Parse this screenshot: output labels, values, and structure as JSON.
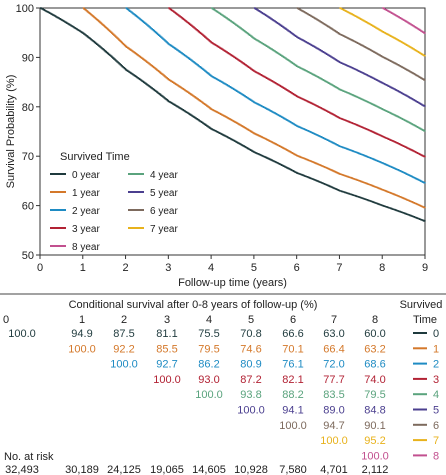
{
  "chart_data": {
    "type": "line",
    "title": "",
    "xlabel": "Follow-up time (years)",
    "ylabel": "Survival Probability (%)",
    "xlim": [
      0,
      9
    ],
    "ylim": [
      50,
      100
    ],
    "x_ticks": [
      0,
      1,
      2,
      3,
      4,
      5,
      6,
      7,
      8,
      9
    ],
    "y_ticks": [
      50,
      60,
      70,
      80,
      90,
      100
    ],
    "grid": false,
    "legend": {
      "title": "Survived Time",
      "placement": "lower-left",
      "entries": [
        "0 year",
        "4 year",
        "1 year",
        "5 year",
        "2 year",
        "6 year",
        "3 year",
        "7 year",
        "8 year"
      ]
    },
    "series": [
      {
        "name": "0 year",
        "color": "#1f3a3d",
        "x": [
          0,
          1,
          2,
          3,
          4,
          5,
          6,
          7,
          8,
          9
        ],
        "y": [
          100.0,
          94.9,
          87.5,
          81.1,
          75.5,
          70.8,
          66.6,
          63.0,
          60.0,
          56.8
        ]
      },
      {
        "name": "1 year",
        "color": "#d4782a",
        "x": [
          1,
          2,
          3,
          4,
          5,
          6,
          7,
          8,
          9
        ],
        "y": [
          100.0,
          92.2,
          85.5,
          79.5,
          74.6,
          70.1,
          66.4,
          63.2,
          59.5
        ]
      },
      {
        "name": "2 year",
        "color": "#1e8bc3",
        "x": [
          2,
          3,
          4,
          5,
          6,
          7,
          8,
          9
        ],
        "y": [
          100.0,
          92.7,
          86.2,
          80.9,
          76.1,
          72.0,
          68.6,
          64.5
        ]
      },
      {
        "name": "3 year",
        "color": "#b22234",
        "x": [
          3,
          4,
          5,
          6,
          7,
          8,
          9
        ],
        "y": [
          100.0,
          93.0,
          87.2,
          82.1,
          77.7,
          74.0,
          69.8
        ]
      },
      {
        "name": "4 year",
        "color": "#5aa37d",
        "x": [
          4,
          5,
          6,
          7,
          8,
          9
        ],
        "y": [
          100.0,
          93.8,
          88.2,
          83.5,
          79.5,
          75.0
        ]
      },
      {
        "name": "5 year",
        "color": "#4b3f8f",
        "x": [
          5,
          6,
          7,
          8,
          9
        ],
        "y": [
          100.0,
          94.1,
          89.0,
          84.8,
          80.0
        ]
      },
      {
        "name": "6 year",
        "color": "#7d6a5d",
        "x": [
          6,
          7,
          8,
          9
        ],
        "y": [
          100.0,
          94.7,
          90.1,
          85.3
        ]
      },
      {
        "name": "7 year",
        "color": "#e8b21c",
        "x": [
          7,
          8,
          9
        ],
        "y": [
          100.0,
          95.2,
          90.2
        ]
      },
      {
        "name": "8 year",
        "color": "#c2508f",
        "x": [
          8,
          9
        ],
        "y": [
          100.0,
          94.8
        ]
      }
    ]
  },
  "table": {
    "title": "Conditional survival after 0-8 years of follow-up (%)",
    "survived_label_1": "Survived",
    "survived_label_2": "Time",
    "columns": [
      "0",
      "1",
      "2",
      "3",
      "4",
      "5",
      "6",
      "7",
      "8"
    ],
    "rows": [
      {
        "label": "0",
        "color": "#1f3a3d",
        "start": 0,
        "values": [
          "100.0",
          "94.9",
          "87.5",
          "81.1",
          "75.5",
          "70.8",
          "66.6",
          "63.0",
          "60.0"
        ]
      },
      {
        "label": "1",
        "color": "#d4782a",
        "start": 1,
        "values": [
          "100.0",
          "92.2",
          "85.5",
          "79.5",
          "74.6",
          "70.1",
          "66.4",
          "63.2"
        ]
      },
      {
        "label": "2",
        "color": "#1e8bc3",
        "start": 2,
        "values": [
          "100.0",
          "92.7",
          "86.2",
          "80.9",
          "76.1",
          "72.0",
          "68.6"
        ]
      },
      {
        "label": "3",
        "color": "#b22234",
        "start": 3,
        "values": [
          "100.0",
          "93.0",
          "87.2",
          "82.1",
          "77.7",
          "74.0"
        ]
      },
      {
        "label": "4",
        "color": "#5aa37d",
        "start": 4,
        "values": [
          "100.0",
          "93.8",
          "88.2",
          "83.5",
          "79.5"
        ]
      },
      {
        "label": "5",
        "color": "#4b3f8f",
        "start": 5,
        "values": [
          "100.0",
          "94.1",
          "89.0",
          "84.8"
        ]
      },
      {
        "label": "6",
        "color": "#7d6a5d",
        "start": 6,
        "values": [
          "100.0",
          "94.7",
          "90.1"
        ]
      },
      {
        "label": "7",
        "color": "#e8b21c",
        "start": 7,
        "values": [
          "100.0",
          "95.2"
        ]
      },
      {
        "label": "8",
        "color": "#c2508f",
        "start": 8,
        "values": [
          "100.0"
        ]
      }
    ],
    "at_risk_label": "No. at risk",
    "at_risk": [
      "32,493",
      "30,189",
      "24,125",
      "19,065",
      "14,605",
      "10,928",
      "7,580",
      "4,701",
      "2,112"
    ]
  }
}
